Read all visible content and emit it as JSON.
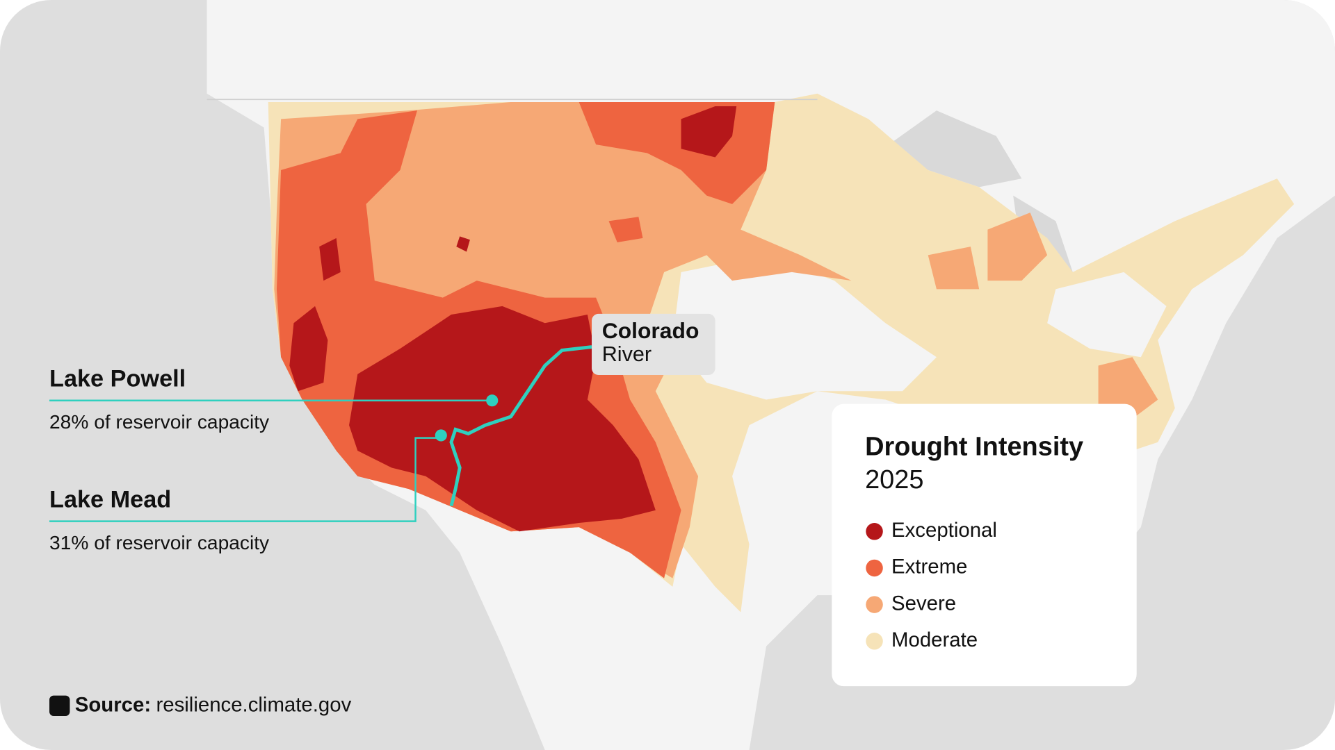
{
  "annotations": {
    "river": {
      "name": "Colorado",
      "kind": "River"
    },
    "lakes": [
      {
        "name": "Lake Powell",
        "detail": "28% of reservoir capacity"
      },
      {
        "name": "Lake Mead",
        "detail": "31% of reservoir capacity"
      }
    ]
  },
  "legend": {
    "title": "Drought Intensity",
    "year": "2025",
    "items": [
      {
        "label": "Exceptional",
        "color": "#b5171a"
      },
      {
        "label": "Extreme",
        "color": "#ee6440"
      },
      {
        "label": "Severe",
        "color": "#f6a875"
      },
      {
        "label": "Moderate",
        "color": "#f6e3b8"
      }
    ]
  },
  "source": {
    "label": "Source:",
    "url": "resilience.climate.gov"
  }
}
